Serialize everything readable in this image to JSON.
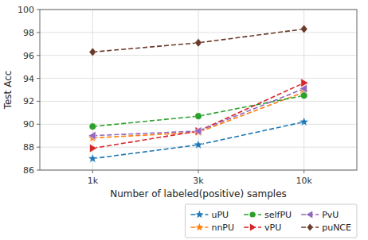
{
  "chart_data": {
    "type": "line",
    "categories": [
      "1k",
      "3k",
      "10k"
    ],
    "series": [
      {
        "name": "uPU",
        "color": "#1f77b4",
        "marker": "star",
        "line_style": "dashed",
        "values": [
          87.0,
          88.2,
          90.2
        ]
      },
      {
        "name": "nnPU",
        "color": "#ff7f0e",
        "marker": "star",
        "line_style": "dashed",
        "values": [
          88.8,
          89.3,
          92.8
        ]
      },
      {
        "name": "selfPU",
        "color": "#2ca02c",
        "marker": "circle",
        "line_style": "dashed",
        "values": [
          89.8,
          90.7,
          92.5
        ]
      },
      {
        "name": "vPU",
        "color": "#d62728",
        "marker": "triangle-right",
        "line_style": "dashed",
        "values": [
          87.9,
          89.4,
          93.6
        ]
      },
      {
        "name": "PvU",
        "color": "#9467bd",
        "marker": "triangle-left",
        "line_style": "dashed",
        "values": [
          89.0,
          89.4,
          93.1
        ]
      },
      {
        "name": "puNCE",
        "color": "#6b3a2a",
        "marker": "diamond",
        "line_style": "dashed",
        "values": [
          96.3,
          97.1,
          98.3
        ]
      }
    ],
    "xlabel": "Number of labeled(positive) samples",
    "ylabel": "Test Acc",
    "ylim": [
      86,
      100
    ],
    "yticks": [
      86,
      88,
      90,
      92,
      94,
      96,
      98,
      100
    ],
    "grid": true,
    "legend": "lower right"
  }
}
